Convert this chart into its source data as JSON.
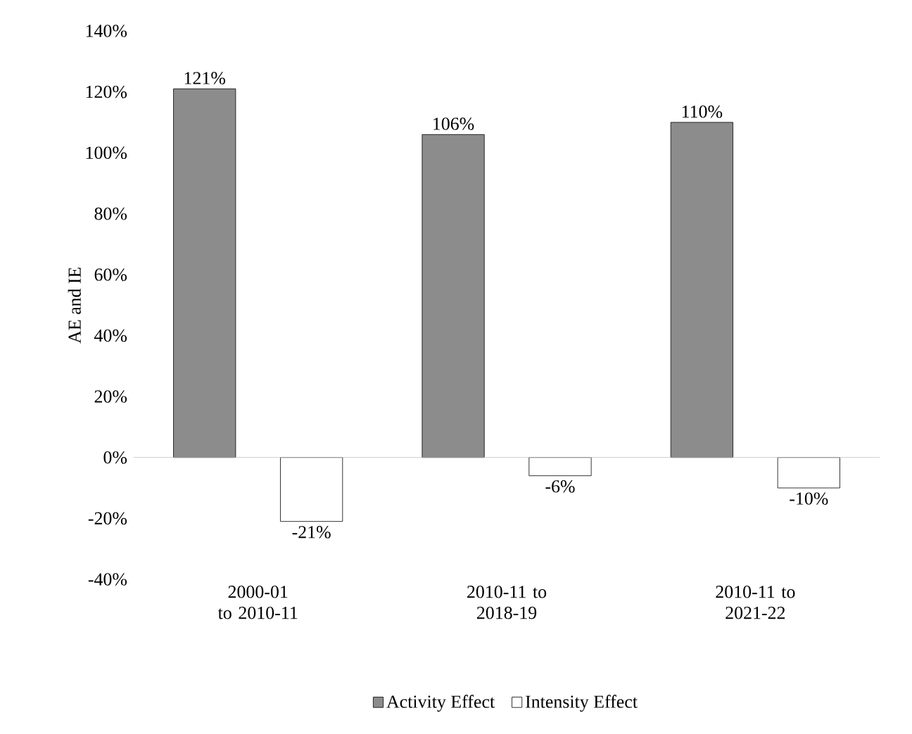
{
  "chart_data": {
    "type": "bar",
    "ylabel": "AE and IE",
    "categories": [
      "2000-01 to 2010-11",
      "2010-11 to 2018-19",
      "2010-11 to 2021-22"
    ],
    "series": [
      {
        "name": "Activity Effect",
        "color": "#8c8c8c",
        "values": [
          121,
          106,
          110
        ],
        "value_labels": [
          "121%",
          "106%",
          "110%"
        ]
      },
      {
        "name": "Intensity Effect",
        "color": "#ffffff",
        "values": [
          -21,
          -6,
          -10
        ],
        "value_labels": [
          "-21%",
          "-6%",
          "-10%"
        ]
      }
    ],
    "ylim": [
      -40,
      140
    ],
    "yticks": [
      {
        "value": -40,
        "label": "-40%"
      },
      {
        "value": -20,
        "label": "-20%"
      },
      {
        "value": 0,
        "label": "0%"
      },
      {
        "value": 20,
        "label": "20%"
      },
      {
        "value": 40,
        "label": "40%"
      },
      {
        "value": 60,
        "label": "60%"
      },
      {
        "value": 80,
        "label": "80%"
      },
      {
        "value": 100,
        "label": "100%"
      },
      {
        "value": 120,
        "label": "120%"
      },
      {
        "value": 140,
        "label": "140%"
      }
    ],
    "ref_lines": [
      {
        "axis": "y",
        "value": 0,
        "color": "#bfbfbf"
      }
    ],
    "grid": false,
    "legend": "bottom"
  }
}
